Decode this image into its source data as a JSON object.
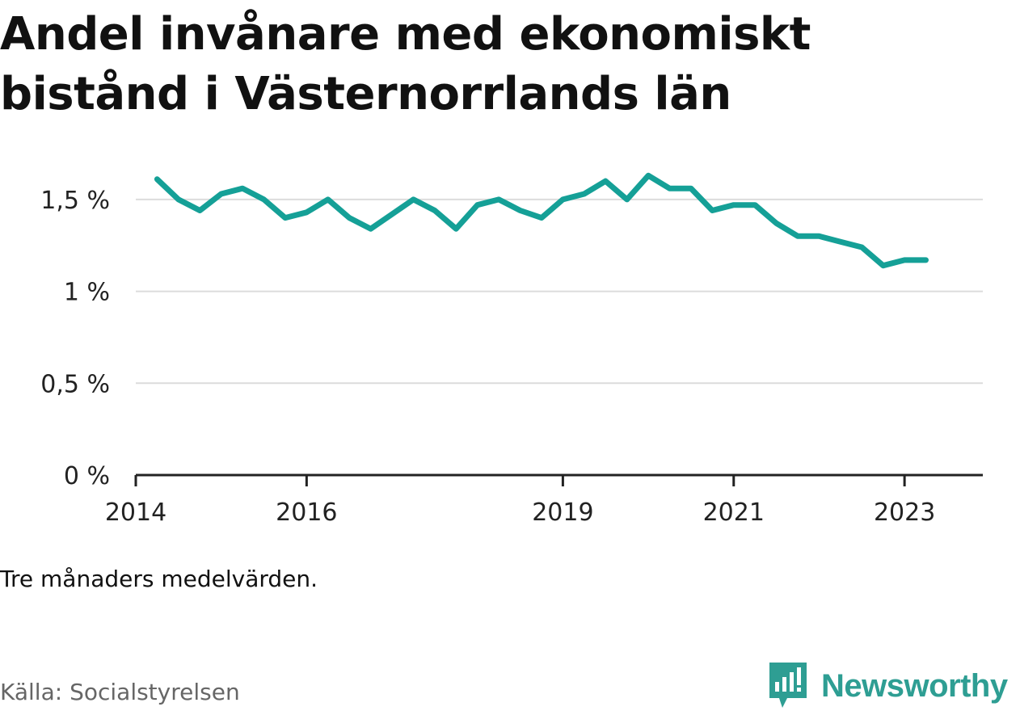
{
  "title": "Andel invånare med ekonomiskt bistånd i Västernorrlands län",
  "note": "Tre månaders medelvärden.",
  "source": "Källa: Socialstyrelsen",
  "brand": {
    "name": "Newsworthy",
    "icon": "newsworthy-logo-icon",
    "color": "#2e9e93"
  },
  "chart_data": {
    "type": "line",
    "x_tick_labels": [
      "2014",
      "2016",
      "2019",
      "2021",
      "2023"
    ],
    "y_tick_labels": [
      "0 %",
      "0,5 %",
      "1 %",
      "1,5 %"
    ],
    "y_ticks": [
      0,
      0.5,
      1,
      1.5
    ],
    "ylim": [
      0,
      1.75
    ],
    "xlim": [
      "2014-01",
      "2023-12"
    ],
    "line_color": "#15a097",
    "grid": true,
    "series": [
      {
        "x": [
          "2014-04",
          "2014-07",
          "2014-10",
          "2015-01",
          "2015-04",
          "2015-07",
          "2015-10",
          "2016-01",
          "2016-04",
          "2016-07",
          "2016-10",
          "2017-01",
          "2017-04",
          "2017-07",
          "2017-10",
          "2018-01",
          "2018-04",
          "2018-07",
          "2018-10",
          "2019-01",
          "2019-04",
          "2019-07",
          "2019-10",
          "2020-01",
          "2020-04",
          "2020-07",
          "2020-10",
          "2021-01",
          "2021-04",
          "2021-07",
          "2021-10",
          "2022-01",
          "2022-04",
          "2022-07",
          "2022-10",
          "2023-01",
          "2023-04"
        ],
        "values": [
          1.61,
          1.5,
          1.44,
          1.53,
          1.56,
          1.5,
          1.4,
          1.43,
          1.5,
          1.4,
          1.34,
          1.42,
          1.5,
          1.44,
          1.34,
          1.47,
          1.5,
          1.44,
          1.4,
          1.5,
          1.53,
          1.6,
          1.5,
          1.63,
          1.56,
          1.56,
          1.44,
          1.47,
          1.47,
          1.37,
          1.3,
          1.3,
          1.27,
          1.24,
          1.14,
          1.17,
          1.17
        ]
      }
    ]
  }
}
